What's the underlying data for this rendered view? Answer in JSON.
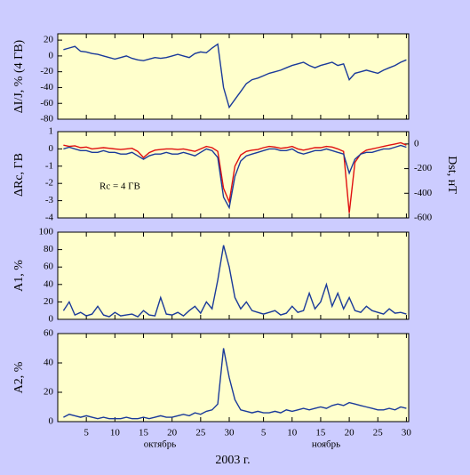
{
  "chart_data": [
    {
      "type": "line",
      "ylabel": "ΔI/J, % (4 ГВ)",
      "x": [
        1,
        2,
        3,
        4,
        5,
        6,
        7,
        8,
        9,
        10,
        11,
        12,
        13,
        14,
        15,
        16,
        17,
        18,
        19,
        20,
        21,
        22,
        23,
        24,
        25,
        26,
        27,
        28,
        29,
        30,
        31,
        32,
        33,
        34,
        35,
        36,
        37,
        38,
        39,
        40,
        41,
        42,
        43,
        44,
        45,
        46,
        47,
        48,
        49,
        50,
        51,
        52,
        53,
        54,
        55,
        56,
        57,
        58,
        59,
        60,
        61
      ],
      "xlim": [
        0,
        61.4
      ],
      "xticks": [
        5,
        10,
        15,
        20,
        25,
        30,
        {
          "value": 36,
          "label": "5"
        },
        {
          "value": 41,
          "label": "10"
        },
        {
          "value": 46,
          "label": "15"
        },
        {
          "value": 51,
          "label": "20"
        },
        {
          "value": 56,
          "label": "25"
        },
        {
          "value": 61,
          "label": "30"
        }
      ],
      "ylim": [
        -80,
        28
      ],
      "yticks": [
        20,
        0,
        -20,
        -40,
        -60,
        -80
      ],
      "series": [
        {
          "color": "#1a3a9a",
          "values": [
            8,
            10,
            12,
            6,
            5,
            3,
            2,
            0,
            -2,
            -4,
            -2,
            0,
            -3,
            -5,
            -6,
            -4,
            -2,
            -3,
            -2,
            0,
            2,
            0,
            -2,
            3,
            5,
            4,
            10,
            15,
            -40,
            -65,
            -55,
            -45,
            -35,
            -30,
            -28,
            -25,
            -22,
            -20,
            -18,
            -15,
            -12,
            -10,
            -8,
            -12,
            -15,
            -12,
            -10,
            -8,
            -12,
            -10,
            -30,
            -22,
            -20,
            -18,
            -20,
            -22,
            -18,
            -15,
            -12,
            -8,
            -5
          ]
        }
      ]
    },
    {
      "type": "line",
      "ylabel": "ΔRc, ГВ",
      "y2label": "Dst, нТ",
      "annotation": "Rc = 4 ГВ",
      "x": [
        1,
        2,
        3,
        4,
        5,
        6,
        7,
        8,
        9,
        10,
        11,
        12,
        13,
        14,
        15,
        16,
        17,
        18,
        19,
        20,
        21,
        22,
        23,
        24,
        25,
        26,
        27,
        28,
        29,
        30,
        31,
        32,
        33,
        34,
        35,
        36,
        37,
        38,
        39,
        40,
        41,
        42,
        43,
        44,
        45,
        46,
        47,
        48,
        49,
        50,
        51,
        52,
        53,
        54,
        55,
        56,
        57,
        58,
        59,
        60,
        61
      ],
      "xlim": [
        0,
        61.4
      ],
      "xticks": [
        5,
        10,
        15,
        20,
        25,
        30,
        {
          "value": 36,
          "label": "5"
        },
        {
          "value": 41,
          "label": "10"
        },
        {
          "value": 46,
          "label": "15"
        },
        {
          "value": 51,
          "label": "20"
        },
        {
          "value": 56,
          "label": "25"
        },
        {
          "value": 61,
          "label": "30"
        }
      ],
      "ylim": [
        -4,
        1
      ],
      "yticks": [
        1,
        0,
        -1,
        -2,
        -3,
        -4
      ],
      "y2lim": [
        -600,
        100
      ],
      "y2ticks": [
        0,
        -200,
        -400,
        -600
      ],
      "series": [
        {
          "color": "#e01010",
          "axis": "y2",
          "values": [
            -10,
            -20,
            -15,
            -30,
            -25,
            -40,
            -35,
            -30,
            -35,
            -40,
            -45,
            -40,
            -35,
            -60,
            -110,
            -70,
            -50,
            -45,
            -40,
            -40,
            -45,
            -40,
            -50,
            -60,
            -40,
            -20,
            -30,
            -60,
            -360,
            -470,
            -180,
            -90,
            -60,
            -50,
            -45,
            -30,
            -20,
            -25,
            -35,
            -30,
            -20,
            -40,
            -50,
            -40,
            -30,
            -30,
            -20,
            -25,
            -40,
            -60,
            -560,
            -150,
            -80,
            -50,
            -40,
            -30,
            -20,
            -10,
            0,
            10,
            -10
          ]
        },
        {
          "color": "#1a3a9a",
          "values": [
            0,
            0.1,
            0,
            -0.1,
            -0.1,
            -0.2,
            -0.2,
            -0.1,
            -0.2,
            -0.2,
            -0.3,
            -0.3,
            -0.2,
            -0.4,
            -0.6,
            -0.4,
            -0.3,
            -0.3,
            -0.2,
            -0.3,
            -0.3,
            -0.2,
            -0.3,
            -0.4,
            -0.2,
            0,
            -0.1,
            -0.5,
            -2.8,
            -3.4,
            -1.6,
            -0.7,
            -0.4,
            -0.3,
            -0.2,
            -0.1,
            0,
            0,
            -0.1,
            -0.1,
            0,
            -0.2,
            -0.3,
            -0.2,
            -0.1,
            -0.1,
            0,
            -0.1,
            -0.2,
            -0.3,
            -1.4,
            -0.6,
            -0.3,
            -0.2,
            -0.2,
            -0.1,
            0,
            0,
            0.1,
            0.2,
            0.1
          ]
        }
      ]
    },
    {
      "type": "line",
      "ylabel": "A1, %",
      "x": [
        1,
        2,
        3,
        4,
        5,
        6,
        7,
        8,
        9,
        10,
        11,
        12,
        13,
        14,
        15,
        16,
        17,
        18,
        19,
        20,
        21,
        22,
        23,
        24,
        25,
        26,
        27,
        28,
        29,
        30,
        31,
        32,
        33,
        34,
        35,
        36,
        37,
        38,
        39,
        40,
        41,
        42,
        43,
        44,
        45,
        46,
        47,
        48,
        49,
        50,
        51,
        52,
        53,
        54,
        55,
        56,
        57,
        58,
        59,
        60,
        61
      ],
      "xlim": [
        0,
        61.4
      ],
      "xticks": [
        5,
        10,
        15,
        20,
        25,
        30,
        {
          "value": 36,
          "label": "5"
        },
        {
          "value": 41,
          "label": "10"
        },
        {
          "value": 46,
          "label": "15"
        },
        {
          "value": 51,
          "label": "20"
        },
        {
          "value": 56,
          "label": "25"
        },
        {
          "value": 61,
          "label": "30"
        }
      ],
      "ylim": [
        0,
        100
      ],
      "yticks": [
        100,
        80,
        60,
        40,
        20,
        0
      ],
      "series": [
        {
          "color": "#1a3a9a",
          "values": [
            10,
            20,
            5,
            8,
            4,
            6,
            15,
            5,
            3,
            8,
            4,
            5,
            6,
            3,
            10,
            5,
            4,
            25,
            6,
            5,
            8,
            4,
            10,
            15,
            7,
            20,
            12,
            45,
            85,
            60,
            25,
            12,
            20,
            10,
            8,
            6,
            8,
            10,
            5,
            7,
            15,
            8,
            10,
            30,
            12,
            20,
            40,
            15,
            30,
            12,
            25,
            10,
            8,
            15,
            10,
            8,
            6,
            12,
            7,
            8,
            6
          ]
        }
      ]
    },
    {
      "type": "line",
      "ylabel": "A2, %",
      "months": [
        "октябрь",
        "ноябрь"
      ],
      "xlabel": "2003 г.",
      "x": [
        1,
        2,
        3,
        4,
        5,
        6,
        7,
        8,
        9,
        10,
        11,
        12,
        13,
        14,
        15,
        16,
        17,
        18,
        19,
        20,
        21,
        22,
        23,
        24,
        25,
        26,
        27,
        28,
        29,
        30,
        31,
        32,
        33,
        34,
        35,
        36,
        37,
        38,
        39,
        40,
        41,
        42,
        43,
        44,
        45,
        46,
        47,
        48,
        49,
        50,
        51,
        52,
        53,
        54,
        55,
        56,
        57,
        58,
        59,
        60,
        61
      ],
      "xlim": [
        0,
        61.4
      ],
      "xticks": [
        5,
        10,
        15,
        20,
        25,
        30,
        {
          "value": 36,
          "label": "5"
        },
        {
          "value": 41,
          "label": "10"
        },
        {
          "value": 46,
          "label": "15"
        },
        {
          "value": 51,
          "label": "20"
        },
        {
          "value": 56,
          "label": "25"
        },
        {
          "value": 61,
          "label": "30"
        }
      ],
      "ylim": [
        0,
        60
      ],
      "yticks": [
        60,
        40,
        20,
        0
      ],
      "series": [
        {
          "color": "#1a3a9a",
          "values": [
            3,
            5,
            4,
            3,
            4,
            3,
            2,
            3,
            2,
            2,
            2,
            3,
            2,
            2,
            3,
            2,
            3,
            4,
            3,
            3,
            4,
            5,
            4,
            6,
            5,
            7,
            8,
            12,
            50,
            30,
            15,
            8,
            7,
            6,
            7,
            6,
            6,
            7,
            6,
            8,
            7,
            8,
            9,
            8,
            9,
            10,
            9,
            11,
            12,
            11,
            13,
            12,
            11,
            10,
            9,
            8,
            8,
            9,
            8,
            10,
            9
          ]
        }
      ]
    }
  ]
}
